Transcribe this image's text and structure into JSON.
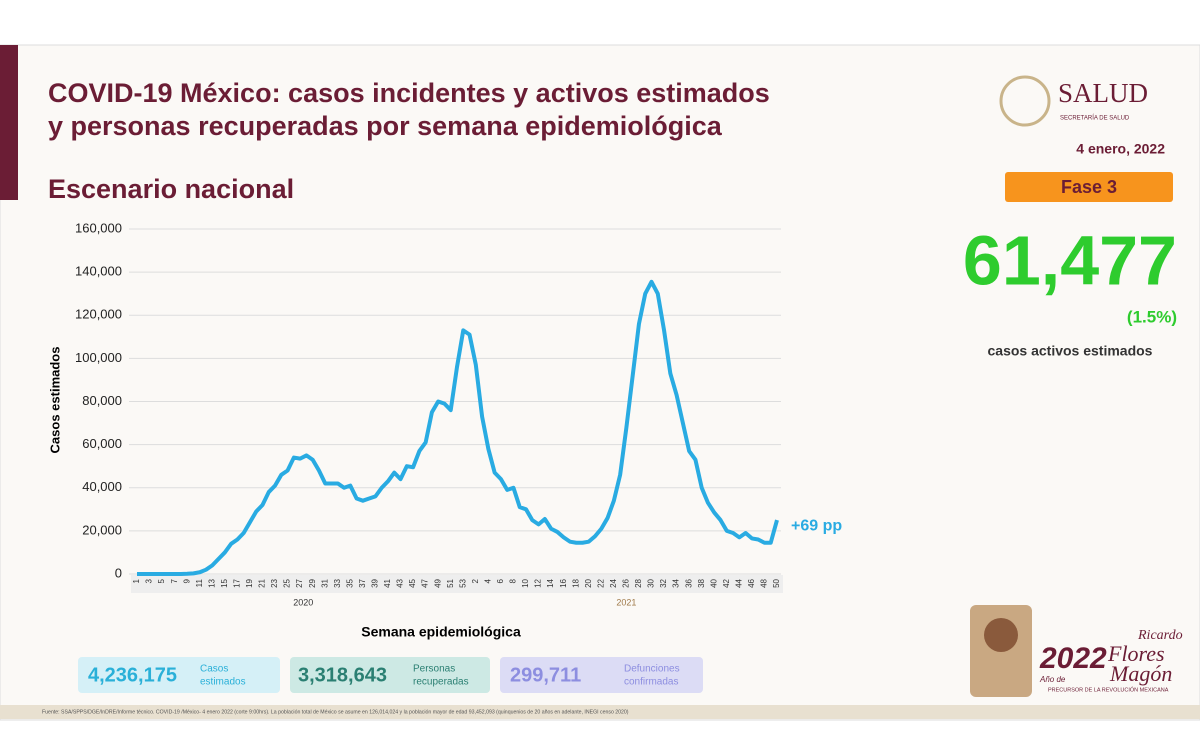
{
  "chart_data": {
    "type": "line",
    "title": [
      "COVID-19 México: casos incidentes y activos estimados",
      "y personas recuperadas por semana epidemiológica"
    ],
    "subtitle": "Escenario nacional",
    "y_label": "Casos estimados",
    "x_label": "Semana epidemiológica",
    "year_labels": [
      "2020",
      "2021"
    ],
    "annotation": "+69 pp",
    "color": "#29abe2",
    "grid": true,
    "ylim": [
      0,
      160000
    ],
    "yticks": [
      0,
      {
        "value": 20000,
        "label": "20,000"
      },
      {
        "value": 40000,
        "label": "40,000"
      },
      {
        "value": 60000,
        "label": "60,000"
      },
      {
        "value": 80000,
        "label": "80,000"
      },
      {
        "value": 100000,
        "label": "100,000"
      },
      {
        "value": 120000,
        "label": "120,000"
      },
      {
        "value": 140000,
        "label": "140,000"
      },
      {
        "value": 160000,
        "label": "160,000"
      }
    ],
    "categories": [
      "1",
      null,
      "3",
      null,
      "5",
      null,
      "7",
      null,
      "9",
      null,
      "11",
      null,
      "13",
      null,
      "15",
      null,
      "17",
      null,
      "19",
      null,
      "21",
      null,
      "23",
      null,
      "25",
      null,
      "27",
      null,
      "29",
      null,
      "31",
      null,
      "33",
      null,
      "35",
      null,
      "37",
      null,
      "39",
      null,
      "41",
      null,
      "43",
      null,
      "45",
      null,
      "47",
      null,
      "49",
      null,
      "51",
      null,
      "53",
      null,
      "2",
      null,
      "4",
      null,
      "6",
      null,
      "8",
      null,
      "10",
      null,
      "12",
      null,
      "14",
      null,
      "16",
      null,
      "18",
      null,
      "20",
      null,
      "22",
      null,
      "24",
      null,
      "26",
      null,
      "28",
      null,
      "30",
      null,
      "32",
      null,
      "34",
      null,
      "36",
      null,
      "38",
      null,
      "40",
      null,
      "42",
      null,
      "44",
      null,
      "46",
      null,
      "48",
      null,
      "50"
    ],
    "values": [
      0,
      0,
      0,
      0,
      0,
      0,
      0,
      0,
      100,
      300,
      800,
      2000,
      4000,
      7000,
      10000,
      14000,
      16000,
      19000,
      24000,
      29000,
      32000,
      38000,
      41000,
      46000,
      48000,
      54000,
      53500,
      55000,
      53000,
      48000,
      42000,
      42000,
      42000,
      40000,
      41000,
      35000,
      34000,
      35000,
      36000,
      40000,
      43000,
      47000,
      44000,
      50000,
      49500,
      57000,
      61000,
      75000,
      80000,
      79000,
      76000,
      96000,
      113000,
      111000,
      97000,
      73000,
      58000,
      47000,
      44000,
      39000,
      40000,
      31000,
      30000,
      25000,
      23000,
      25500,
      21000,
      19500,
      17000,
      15000,
      14500,
      14500,
      15000,
      17500,
      21000,
      26000,
      34000,
      46000,
      68000,
      92000,
      116000,
      130000,
      135500,
      130000,
      113000,
      93000,
      83000,
      70000,
      57000,
      53000,
      40000,
      33000,
      28500,
      25000,
      20000,
      19000,
      17000,
      19000,
      16500,
      16000,
      14500,
      14500,
      25000
    ]
  },
  "logo": {
    "name": "SALUD",
    "sub": "SECRETARÍA DE SALUD"
  },
  "date": "4 enero, 2022",
  "phase": "Fase 3",
  "active": {
    "number": "61,477",
    "percent": "(1.5%)",
    "label": "casos activos estimados"
  },
  "stats": [
    {
      "number": "4,236,175",
      "label": [
        "Casos",
        "estimados"
      ]
    },
    {
      "number": "3,318,643",
      "label": [
        "Personas",
        "recuperadas"
      ]
    },
    {
      "number": "299,711",
      "label": [
        "Defunciones",
        "confirmadas"
      ]
    }
  ],
  "badge": {
    "year": "2022",
    "year_of": "Año de",
    "first": "Ricardo",
    "last1": "Flores",
    "last2": "Magón",
    "caption": "PRECURSOR DE LA REVOLUCIÓN MEXICANA"
  },
  "source": "Fuente: SSA/SPPS/DGE/InDRE/Informe técnico. COVID-19 /México- 4 enero 2022 (corte 9:00hrs). La población total de México se asume en 126,014,024 y la población mayor de edad 93,452,093 (quinquenios de 20 años en adelante, INEGI censo 2020)"
}
